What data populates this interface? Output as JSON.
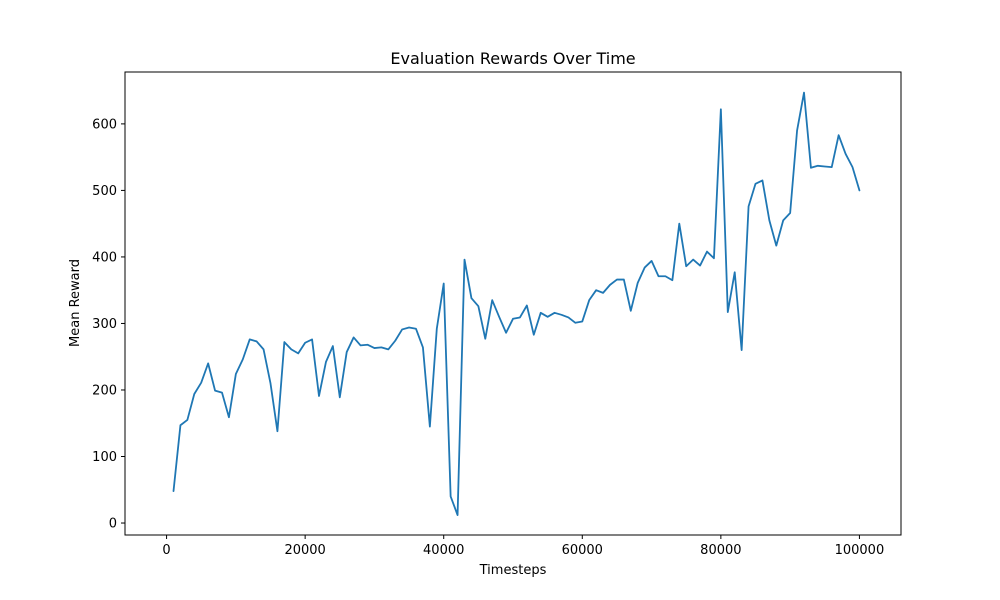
{
  "chart_data": {
    "type": "line",
    "title": "Evaluation Rewards Over Time",
    "xlabel": "Timesteps",
    "ylabel": "Mean Reward",
    "xlim": [
      -6000,
      106000
    ],
    "ylim": [
      -18,
      678
    ],
    "xticks": [
      0,
      20000,
      40000,
      60000,
      80000,
      100000
    ],
    "yticks": [
      0,
      100,
      200,
      300,
      400,
      500,
      600
    ],
    "grid": false,
    "colors": {
      "line": "#1f77b4",
      "axis": "#000000",
      "background": "#ffffff"
    },
    "series": [
      {
        "x": [
          1000,
          2000,
          3000,
          4000,
          5000,
          6000,
          7000,
          8000,
          9000,
          10000,
          11000,
          12000,
          13000,
          14000,
          15000,
          16000,
          17000,
          18000,
          19000,
          20000,
          21000,
          22000,
          23000,
          24000,
          25000,
          26000,
          27000,
          28000,
          29000,
          30000,
          31000,
          32000,
          33000,
          34000,
          35000,
          36000,
          37000,
          38000,
          39000,
          40000,
          41000,
          42000,
          43000,
          44000,
          45000,
          46000,
          47000,
          48000,
          49000,
          50000,
          51000,
          52000,
          53000,
          54000,
          55000,
          56000,
          57000,
          58000,
          59000,
          60000,
          61000,
          62000,
          63000,
          64000,
          65000,
          66000,
          67000,
          68000,
          69000,
          70000,
          71000,
          72000,
          73000,
          74000,
          75000,
          76000,
          77000,
          78000,
          79000,
          80000,
          81000,
          82000,
          83000,
          84000,
          85000,
          86000,
          87000,
          88000,
          89000,
          90000,
          91000,
          92000,
          93000,
          94000,
          95000,
          96000,
          97000,
          98000,
          99000,
          100000
        ],
        "values": [
          48,
          147,
          155,
          194,
          211,
          240,
          199,
          196,
          159,
          224,
          246,
          276,
          273,
          261,
          210,
          138,
          272,
          261,
          255,
          271,
          276,
          191,
          242,
          266,
          189,
          257,
          279,
          267,
          268,
          263,
          264,
          261,
          274,
          291,
          294,
          292,
          264,
          145,
          292,
          360,
          40,
          12,
          396,
          338,
          326,
          277,
          335,
          310,
          286,
          307,
          309,
          327,
          283,
          316,
          310,
          316,
          313,
          309,
          301,
          303,
          335,
          350,
          346,
          358,
          366,
          366,
          319,
          361,
          384,
          394,
          371,
          371,
          365,
          450,
          386,
          396,
          387,
          408,
          398,
          622,
          317,
          377,
          260,
          476,
          510,
          515,
          455,
          417,
          455,
          466,
          590,
          647,
          534,
          537,
          536,
          535,
          583,
          555,
          535,
          500
        ]
      }
    ]
  }
}
